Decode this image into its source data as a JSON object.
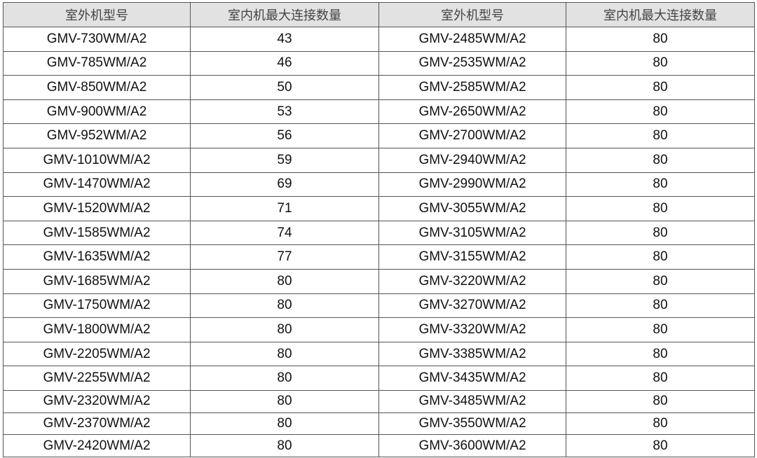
{
  "table": {
    "headers": [
      "室外机型号",
      "室内机最大连接数量",
      "室外机型号",
      "室内机最大连接数量"
    ],
    "rows": [
      [
        "GMV-730WM/A2",
        "43",
        "GMV-2485WM/A2",
        "80"
      ],
      [
        "GMV-785WM/A2",
        "46",
        "GMV-2535WM/A2",
        "80"
      ],
      [
        "GMV-850WM/A2",
        "50",
        "GMV-2585WM/A2",
        "80"
      ],
      [
        "GMV-900WM/A2",
        "53",
        "GMV-2650WM/A2",
        "80"
      ],
      [
        "GMV-952WM/A2",
        "56",
        "GMV-2700WM/A2",
        "80"
      ],
      [
        "GMV-1010WM/A2",
        "59",
        "GMV-2940WM/A2",
        "80"
      ],
      [
        "GMV-1470WM/A2",
        "69",
        "GMV-2990WM/A2",
        "80"
      ],
      [
        "GMV-1520WM/A2",
        "71",
        "GMV-3055WM/A2",
        "80"
      ],
      [
        "GMV-1585WM/A2",
        "74",
        "GMV-3105WM/A2",
        "80"
      ],
      [
        "GMV-1635WM/A2",
        "77",
        "GMV-3155WM/A2",
        "80"
      ],
      [
        "GMV-1685WM/A2",
        "80",
        "GMV-3220WM/A2",
        "80"
      ],
      [
        "GMV-1750WM/A2",
        "80",
        "GMV-3270WM/A2",
        "80"
      ],
      [
        "GMV-1800WM/A2",
        "80",
        "GMV-3320WM/A2",
        "80"
      ],
      [
        "GMV-2205WM/A2",
        "80",
        "GMV-3385WM/A2",
        "80"
      ],
      [
        "GMV-2255WM/A2",
        "80",
        "GMV-3435WM/A2",
        "80"
      ],
      [
        "GMV-2320WM/A2",
        "80",
        "GMV-3485WM/A2",
        "80"
      ],
      [
        "GMV-2370WM/A2",
        "80",
        "GMV-3550WM/A2",
        "80"
      ],
      [
        "GMV-2420WM/A2",
        "80",
        "GMV-3600WM/A2",
        "80"
      ]
    ]
  }
}
